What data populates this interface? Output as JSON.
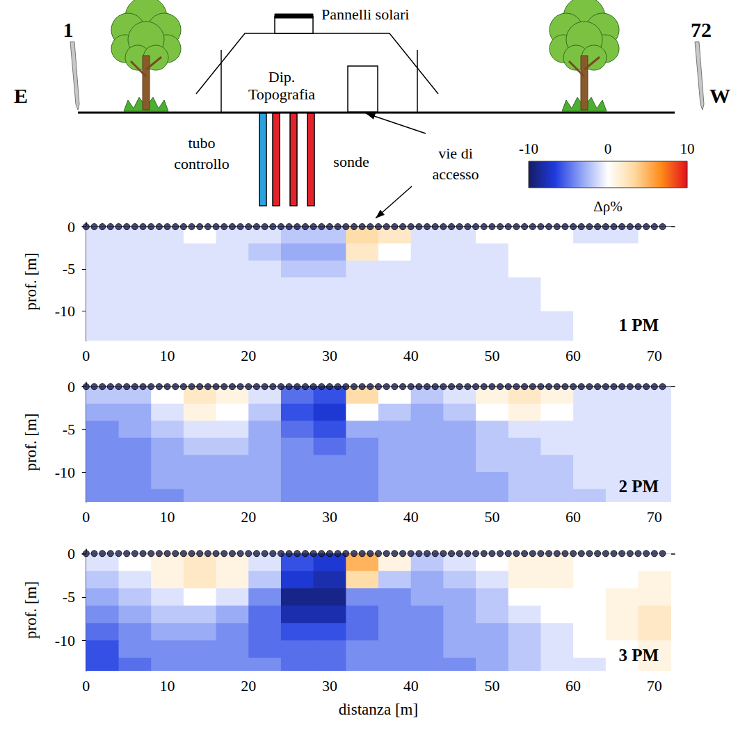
{
  "diagram": {
    "left_electrode": "1",
    "right_electrode": "72",
    "east": "E",
    "west": "W",
    "roof": "Pannelli solari",
    "building": [
      "Dip.",
      "Topografia"
    ],
    "control_pipe": [
      "tubo",
      "controllo"
    ],
    "probes": "sonde",
    "access": [
      "vie di",
      "accesso"
    ]
  },
  "colorbar": {
    "range": [
      -10,
      10
    ],
    "ticks": [
      -10,
      0,
      10
    ],
    "label": "Δρ%",
    "colors": [
      "#151c62",
      "#1f3be0",
      "#8fa3f5",
      "#ffffff",
      "#ffd9a0",
      "#ff8c1a",
      "#e3101b"
    ]
  },
  "electrodes": [
    0,
    1,
    2,
    3,
    4,
    5,
    6,
    7,
    8,
    9,
    10,
    11,
    12,
    13,
    14,
    15,
    16,
    17,
    18,
    19,
    20,
    21,
    22,
    23,
    24,
    25,
    26,
    27,
    28,
    29,
    30,
    31,
    32,
    33,
    34,
    35,
    36,
    37,
    38,
    39,
    40,
    41,
    42,
    43,
    44,
    45,
    46,
    47,
    48,
    49,
    50,
    51,
    52,
    53,
    54,
    55,
    56,
    57,
    58,
    59,
    60,
    61,
    62,
    63,
    64,
    65,
    66,
    67,
    68,
    69,
    70,
    71
  ],
  "chart_data": [
    {
      "type": "heatmap",
      "title": "1 PM",
      "y_label": "prof. [m]",
      "xlim": [
        -0.5,
        72.5
      ],
      "xticks": [
        0,
        10,
        20,
        30,
        40,
        50,
        60,
        70
      ],
      "ylim": [
        -13.5,
        0.5
      ],
      "yticks": [
        -10,
        -5,
        0
      ],
      "x": [
        2,
        6,
        10,
        14,
        18,
        22,
        26,
        30,
        34,
        38,
        42,
        46,
        50,
        54,
        58,
        62,
        66,
        70
      ],
      "y": [
        -1,
        -3,
        -5,
        -7,
        -9,
        -11,
        -13
      ],
      "cells": [
        [
          -1,
          -1,
          -1,
          0,
          -1,
          -1,
          -2,
          -2,
          3,
          2,
          -1,
          -1,
          0,
          0,
          0,
          -1,
          -1,
          0
        ],
        [
          -1,
          -1,
          -1,
          -1,
          -1,
          -2,
          -3,
          -3,
          2,
          0,
          -1,
          -1,
          -1,
          0,
          0,
          0,
          0,
          0
        ],
        [
          -1,
          -1,
          -1,
          -1,
          -1,
          -1,
          -2,
          -2,
          -1,
          -1,
          -1,
          -1,
          -1,
          0,
          0,
          0,
          0,
          0
        ],
        [
          -1,
          -1,
          -1,
          -1,
          -1,
          -1,
          -1,
          -1,
          -1,
          -1,
          -1,
          -1,
          -1,
          -1,
          0,
          0,
          0,
          0
        ],
        [
          -1,
          -1,
          -1,
          -1,
          -1,
          -1,
          -1,
          -1,
          -1,
          -1,
          -1,
          -1,
          -1,
          -1,
          0,
          0,
          0,
          0
        ],
        [
          -1,
          -1,
          -1,
          -1,
          -1,
          -1,
          -1,
          -1,
          -1,
          -1,
          -1,
          -1,
          -1,
          -1,
          -1,
          0,
          0,
          0
        ],
        [
          -1,
          -1,
          -1,
          -1,
          -1,
          -1,
          -1,
          -1,
          -1,
          -1,
          -1,
          -1,
          -1,
          -1,
          -1,
          0,
          0,
          0
        ]
      ]
    },
    {
      "type": "heatmap",
      "title": "2 PM",
      "y_label": "prof. [m]",
      "xlim": [
        -0.5,
        72.5
      ],
      "xticks": [
        0,
        10,
        20,
        30,
        40,
        50,
        60,
        70
      ],
      "ylim": [
        -13.5,
        0.5
      ],
      "yticks": [
        -10,
        -5,
        0
      ],
      "x": [
        2,
        6,
        10,
        14,
        18,
        22,
        26,
        30,
        34,
        38,
        42,
        46,
        50,
        54,
        58,
        62,
        66,
        70
      ],
      "y": [
        -1,
        -3,
        -5,
        -7,
        -9,
        -11,
        -13
      ],
      "cells": [
        [
          -2,
          -2,
          0,
          2,
          1,
          -1,
          -5,
          -6,
          3,
          0,
          -2,
          -1,
          1,
          2,
          1,
          -1,
          -1,
          -1
        ],
        [
          -3,
          -3,
          -1,
          1,
          0,
          -2,
          -6,
          -7,
          0,
          -2,
          -3,
          -2,
          0,
          1,
          0,
          -1,
          -1,
          -1
        ],
        [
          -4,
          -3,
          -2,
          -1,
          -1,
          -3,
          -5,
          -6,
          -3,
          -3,
          -3,
          -3,
          -2,
          -1,
          -1,
          -1,
          -1,
          -1
        ],
        [
          -4,
          -4,
          -3,
          -2,
          -2,
          -3,
          -4,
          -5,
          -4,
          -3,
          -3,
          -3,
          -2,
          -2,
          -1,
          -1,
          -1,
          -1
        ],
        [
          -4,
          -4,
          -3,
          -3,
          -3,
          -3,
          -4,
          -4,
          -4,
          -3,
          -3,
          -3,
          -2,
          -2,
          -2,
          -1,
          -1,
          -1
        ],
        [
          -4,
          -4,
          -3,
          -3,
          -3,
          -3,
          -4,
          -4,
          -4,
          -3,
          -3,
          -3,
          -3,
          -2,
          -2,
          -1,
          -1,
          -1
        ],
        [
          -4,
          -4,
          -4,
          -3,
          -3,
          -3,
          -4,
          -4,
          -4,
          -3,
          -3,
          -3,
          -3,
          -2,
          -2,
          -2,
          -1,
          -1
        ]
      ]
    },
    {
      "type": "heatmap",
      "title": "3 PM",
      "y_label": "prof. [m]",
      "x_label": "distanza [m]",
      "xlim": [
        -0.5,
        72.5
      ],
      "xticks": [
        0,
        10,
        20,
        30,
        40,
        50,
        60,
        70
      ],
      "ylim": [
        -13.5,
        0.5
      ],
      "yticks": [
        -10,
        -5,
        0
      ],
      "x": [
        2,
        6,
        10,
        14,
        18,
        22,
        26,
        30,
        34,
        38,
        42,
        46,
        50,
        54,
        58,
        62,
        66,
        70
      ],
      "y": [
        -1,
        -3,
        -5,
        -7,
        -9,
        -11,
        -13
      ],
      "cells": [
        [
          -1,
          0,
          1,
          2,
          1,
          -1,
          -6,
          -7,
          5,
          1,
          -2,
          -1,
          0,
          1,
          1,
          0,
          0,
          0
        ],
        [
          -2,
          -1,
          1,
          2,
          1,
          -2,
          -7,
          -8,
          3,
          -2,
          -3,
          -2,
          -1,
          1,
          1,
          0,
          0,
          1
        ],
        [
          -3,
          -2,
          -1,
          0,
          -1,
          -4,
          -9,
          -9,
          -4,
          -4,
          -3,
          -3,
          -2,
          0,
          0,
          0,
          1,
          1
        ],
        [
          -4,
          -3,
          -2,
          -2,
          -3,
          -5,
          -8,
          -8,
          -5,
          -4,
          -4,
          -3,
          -2,
          -1,
          0,
          0,
          1,
          2
        ],
        [
          -5,
          -4,
          -3,
          -3,
          -4,
          -5,
          -6,
          -6,
          -5,
          -4,
          -4,
          -3,
          -3,
          -2,
          -1,
          0,
          1,
          2
        ],
        [
          -6,
          -4,
          -4,
          -4,
          -4,
          -5,
          -5,
          -5,
          -4,
          -4,
          -4,
          -3,
          -3,
          -2,
          -1,
          0,
          0,
          1
        ],
        [
          -6,
          -5,
          -4,
          -4,
          -4,
          -4,
          -5,
          -5,
          -4,
          -4,
          -4,
          -4,
          -3,
          -2,
          -1,
          -1,
          0,
          1
        ]
      ]
    }
  ]
}
